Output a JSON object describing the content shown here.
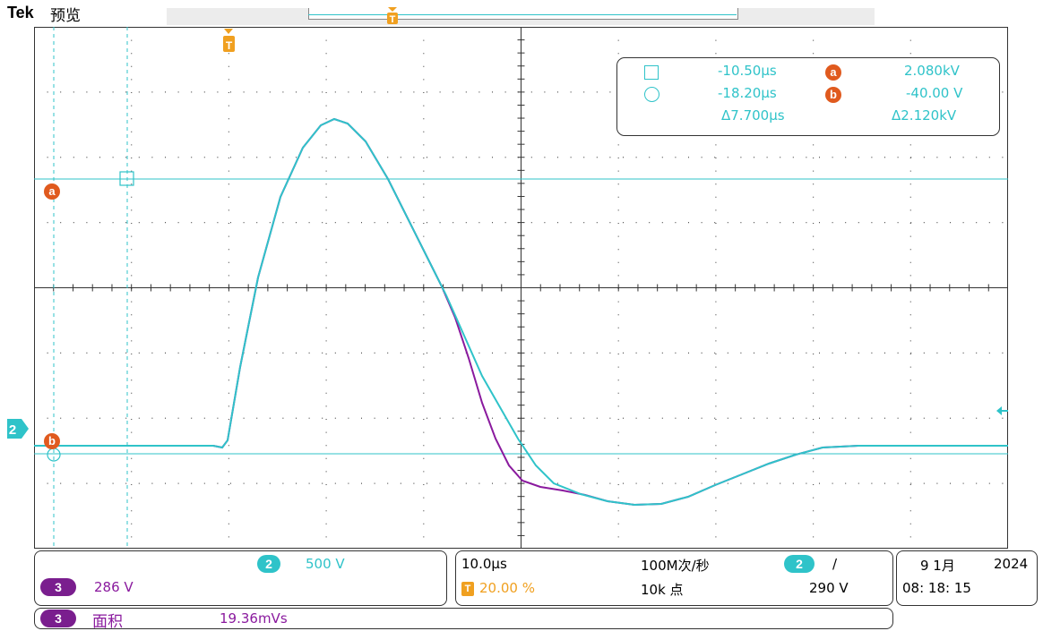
{
  "header": {
    "brand": "Tek",
    "mode": "预览"
  },
  "colors": {
    "channel2": "#2fc3c9",
    "channel3": "#8a1a9e",
    "cursor_badge": "#e05a1e",
    "trigger": "#f0a020",
    "grid": "#444444"
  },
  "screen": {
    "trigger_marker": "T",
    "channel2_ground_label": "2",
    "cursor_a_label": "a",
    "cursor_b_label": "b"
  },
  "cursor_readout": {
    "square_time": "-10.50µs",
    "circle_time": "-18.20µs",
    "delta_time": "Δ7.700µs",
    "a_badge": "a",
    "a_value": "2.080kV",
    "b_badge": "b",
    "b_value": "-40.00 V",
    "delta_value": "Δ2.120kV"
  },
  "channels": {
    "ch2_badge": "2",
    "ch2_scale": "500 V",
    "ch3_badge": "3",
    "ch3_scale": "286 V"
  },
  "timebase": {
    "scale": "10.0µs",
    "trigger_icon": "T",
    "trigger_position": "20.00 %",
    "sample_rate": "100M次/秒",
    "record_length": "10k 点"
  },
  "trigger": {
    "source_badge": "2",
    "slope_symbol": "/",
    "level": "290 V"
  },
  "datetime": {
    "date": "9 1月",
    "year": "2024",
    "time": "08: 18: 15"
  },
  "measurement": {
    "badge": "3",
    "name": "面积",
    "value": "19.36mVs"
  }
}
